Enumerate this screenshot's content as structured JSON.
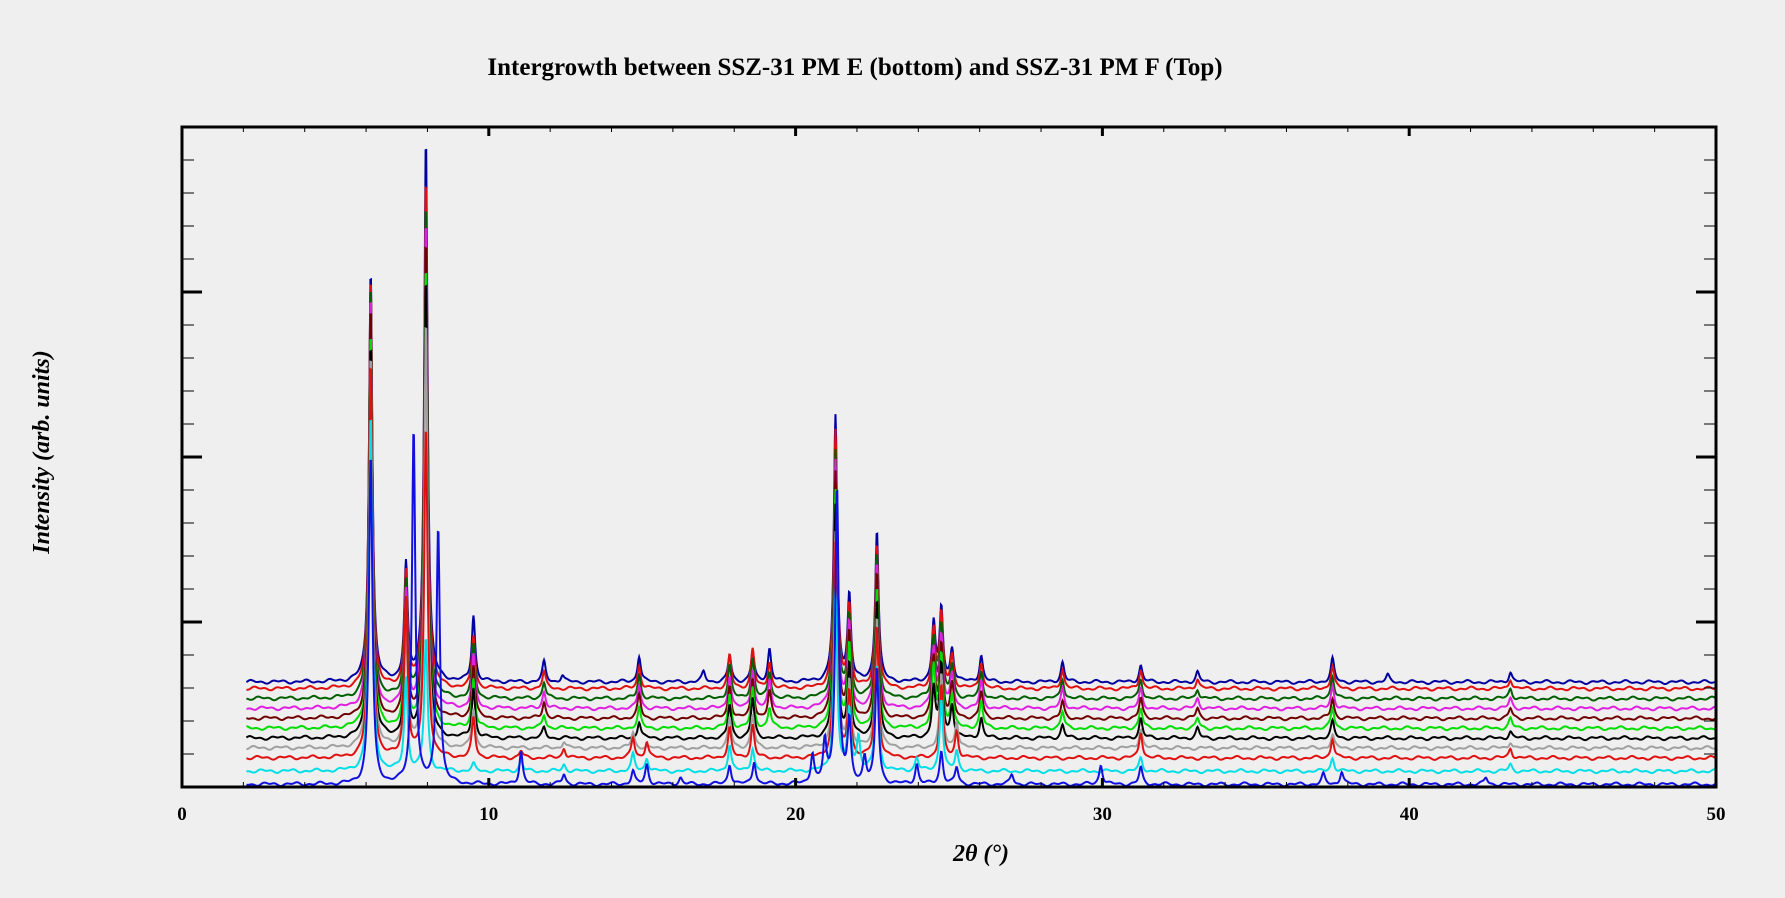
{
  "chart_data": {
    "type": "line",
    "title": "Intergrowth between SSZ-31 PM E (bottom) and SSZ-31 PM F (Top)",
    "xlabel": "2θ (°)",
    "ylabel": "Intensity (arb. units)",
    "xlim": [
      0,
      50
    ],
    "ylim": [
      0,
      200
    ],
    "x_ticks": [
      0,
      10,
      20,
      30,
      40,
      50
    ],
    "x_tick_labels": [
      "0",
      "10",
      "20",
      "30",
      "40",
      "50"
    ],
    "y_ticks_major": [
      0,
      50,
      100,
      150,
      200
    ],
    "y_tick_labels_shown": false,
    "grid": false,
    "legend": "none",
    "x_start": 2.1,
    "x_end": 50,
    "series_note_order": "bottom to top",
    "series": [
      {
        "color": "#1010e0",
        "offset": 0,
        "peaks": [
          [
            6.15,
            100
          ],
          [
            7.55,
            108
          ],
          [
            8.35,
            78
          ],
          [
            11.05,
            10
          ],
          [
            12.45,
            3
          ],
          [
            14.7,
            4
          ],
          [
            15.15,
            6
          ],
          [
            16.25,
            2
          ],
          [
            17.85,
            6
          ],
          [
            18.65,
            7
          ],
          [
            20.55,
            9
          ],
          [
            20.95,
            12
          ],
          [
            21.35,
            90
          ],
          [
            21.75,
            18
          ],
          [
            22.25,
            8
          ],
          [
            22.65,
            35
          ],
          [
            23.95,
            6
          ],
          [
            24.75,
            10
          ],
          [
            25.25,
            5
          ],
          [
            27.05,
            3
          ],
          [
            29.95,
            6
          ],
          [
            31.25,
            5
          ],
          [
            37.2,
            3
          ],
          [
            37.8,
            4
          ],
          [
            42.5,
            2
          ]
        ]
      },
      {
        "color": "#00dfe6",
        "offset": 4,
        "peaks": [
          [
            6.15,
            108
          ],
          [
            7.3,
            28
          ],
          [
            7.95,
            40
          ],
          [
            9.5,
            2
          ],
          [
            11.05,
            3
          ],
          [
            12.45,
            2
          ],
          [
            14.7,
            5
          ],
          [
            15.15,
            4
          ],
          [
            17.85,
            8
          ],
          [
            18.6,
            7
          ],
          [
            21.3,
            55
          ],
          [
            21.75,
            18
          ],
          [
            22.05,
            10
          ],
          [
            22.65,
            32
          ],
          [
            23.95,
            4
          ],
          [
            24.75,
            22
          ],
          [
            25.25,
            6
          ],
          [
            31.25,
            4
          ],
          [
            37.5,
            4
          ],
          [
            43.3,
            2
          ]
        ]
      },
      {
        "color": "#e01010",
        "offset": 8,
        "peaks": [
          [
            6.15,
            120
          ],
          [
            7.3,
            48
          ],
          [
            7.95,
            100
          ],
          [
            9.5,
            12
          ],
          [
            11.05,
            2
          ],
          [
            12.45,
            3
          ],
          [
            14.7,
            6
          ],
          [
            15.15,
            5
          ],
          [
            17.85,
            9
          ],
          [
            18.6,
            10
          ],
          [
            21.3,
            65
          ],
          [
            21.75,
            20
          ],
          [
            22.65,
            40
          ],
          [
            24.75,
            22
          ],
          [
            25.25,
            8
          ],
          [
            31.25,
            8
          ],
          [
            37.5,
            6
          ],
          [
            43.3,
            3
          ]
        ]
      },
      {
        "color": "#a0a0a0",
        "offset": 11,
        "peaks": [
          [
            6.15,
            120
          ],
          [
            7.3,
            35
          ],
          [
            7.95,
            130
          ],
          [
            9.5,
            12
          ],
          [
            12.45,
            2
          ],
          [
            14.7,
            5
          ],
          [
            17.85,
            9
          ],
          [
            18.6,
            10
          ],
          [
            21.3,
            65
          ],
          [
            21.75,
            20
          ],
          [
            22.65,
            40
          ],
          [
            24.75,
            22
          ],
          [
            25.25,
            8
          ],
          [
            31.25,
            6
          ],
          [
            37.5,
            4
          ],
          [
            43.3,
            2
          ]
        ]
      },
      {
        "color": "#000000",
        "offset": 14,
        "peaks": [
          [
            6.15,
            120
          ],
          [
            7.3,
            35
          ],
          [
            7.95,
            140
          ],
          [
            9.5,
            15
          ],
          [
            11.8,
            3
          ],
          [
            14.9,
            5
          ],
          [
            17.85,
            10
          ],
          [
            18.6,
            12
          ],
          [
            21.3,
            70
          ],
          [
            21.75,
            22
          ],
          [
            22.65,
            42
          ],
          [
            24.5,
            15
          ],
          [
            24.75,
            22
          ],
          [
            25.1,
            10
          ],
          [
            26.05,
            6
          ],
          [
            28.7,
            4
          ],
          [
            31.25,
            6
          ],
          [
            33.1,
            3
          ],
          [
            37.5,
            5
          ],
          [
            43.3,
            2
          ]
        ]
      },
      {
        "color": "#00dd00",
        "offset": 17,
        "peaks": [
          [
            6.15,
            120
          ],
          [
            7.3,
            35
          ],
          [
            7.95,
            140
          ],
          [
            9.5,
            15
          ],
          [
            11.8,
            4
          ],
          [
            14.9,
            6
          ],
          [
            17.85,
            10
          ],
          [
            18.6,
            12
          ],
          [
            19.15,
            6
          ],
          [
            21.3,
            72
          ],
          [
            21.75,
            25
          ],
          [
            22.65,
            42
          ],
          [
            24.5,
            18
          ],
          [
            24.75,
            22
          ],
          [
            25.1,
            10
          ],
          [
            26.05,
            8
          ],
          [
            28.7,
            5
          ],
          [
            31.25,
            6
          ],
          [
            33.1,
            3
          ],
          [
            37.5,
            6
          ],
          [
            43.3,
            3
          ]
        ]
      },
      {
        "color": "#700000",
        "offset": 20,
        "peaks": [
          [
            6.15,
            125
          ],
          [
            7.3,
            35
          ],
          [
            7.95,
            145
          ],
          [
            9.5,
            16
          ],
          [
            11.8,
            5
          ],
          [
            14.9,
            7
          ],
          [
            17.85,
            10
          ],
          [
            18.6,
            12
          ],
          [
            19.15,
            8
          ],
          [
            21.3,
            75
          ],
          [
            21.75,
            25
          ],
          [
            22.65,
            44
          ],
          [
            24.5,
            18
          ],
          [
            24.75,
            22
          ],
          [
            25.1,
            10
          ],
          [
            26.05,
            8
          ],
          [
            28.7,
            5
          ],
          [
            31.25,
            6
          ],
          [
            33.1,
            3
          ],
          [
            37.5,
            6
          ],
          [
            43.3,
            3
          ]
        ]
      },
      {
        "color": "#e020e0",
        "offset": 23,
        "peaks": [
          [
            6.15,
            125
          ],
          [
            7.3,
            35
          ],
          [
            7.95,
            148
          ],
          [
            9.5,
            16
          ],
          [
            11.8,
            5
          ],
          [
            14.9,
            7
          ],
          [
            17.85,
            10
          ],
          [
            18.6,
            12
          ],
          [
            19.15,
            8
          ],
          [
            21.3,
            75
          ],
          [
            21.75,
            25
          ],
          [
            22.65,
            44
          ],
          [
            24.5,
            18
          ],
          [
            24.75,
            22
          ],
          [
            25.1,
            10
          ],
          [
            26.05,
            8
          ],
          [
            28.7,
            6
          ],
          [
            31.25,
            6
          ],
          [
            33.1,
            3
          ],
          [
            37.5,
            7
          ],
          [
            43.3,
            3
          ]
        ]
      },
      {
        "color": "#006000",
        "offset": 26,
        "peaks": [
          [
            6.15,
            125
          ],
          [
            7.3,
            35
          ],
          [
            7.95,
            150
          ],
          [
            9.5,
            16
          ],
          [
            11.8,
            5
          ],
          [
            14.9,
            7
          ],
          [
            17.85,
            10
          ],
          [
            18.6,
            12
          ],
          [
            19.15,
            8
          ],
          [
            21.3,
            75
          ],
          [
            21.75,
            25
          ],
          [
            22.65,
            44
          ],
          [
            24.5,
            18
          ],
          [
            24.75,
            22
          ],
          [
            25.1,
            10
          ],
          [
            26.05,
            8
          ],
          [
            28.7,
            6
          ],
          [
            31.25,
            6
          ],
          [
            33.1,
            3
          ],
          [
            37.5,
            7
          ],
          [
            43.3,
            3
          ]
        ]
      },
      {
        "color": "#e01010",
        "offset": 29,
        "peaks": [
          [
            6.15,
            125
          ],
          [
            7.3,
            35
          ],
          [
            7.95,
            155
          ],
          [
            9.5,
            16
          ],
          [
            11.8,
            5
          ],
          [
            14.9,
            7
          ],
          [
            17.85,
            10
          ],
          [
            18.6,
            12
          ],
          [
            19.15,
            8
          ],
          [
            21.3,
            78
          ],
          [
            21.75,
            25
          ],
          [
            22.65,
            44
          ],
          [
            24.5,
            18
          ],
          [
            24.75,
            22
          ],
          [
            25.1,
            10
          ],
          [
            26.05,
            8
          ],
          [
            28.7,
            6
          ],
          [
            31.25,
            6
          ],
          [
            33.1,
            3
          ],
          [
            37.5,
            7
          ],
          [
            43.3,
            3
          ]
        ]
      },
      {
        "color": "#0000a0",
        "offset": 31,
        "peaks": [
          [
            6.15,
            125
          ],
          [
            7.3,
            35
          ],
          [
            7.95,
            165
          ],
          [
            9.5,
            20
          ],
          [
            11.8,
            6
          ],
          [
            12.4,
            2
          ],
          [
            14.9,
            8
          ],
          [
            17.0,
            3
          ],
          [
            17.85,
            8
          ],
          [
            18.6,
            9
          ],
          [
            19.15,
            10
          ],
          [
            21.3,
            80
          ],
          [
            21.75,
            26
          ],
          [
            22.65,
            46
          ],
          [
            24.5,
            18
          ],
          [
            24.75,
            22
          ],
          [
            25.1,
            10
          ],
          [
            26.05,
            8
          ],
          [
            28.7,
            6
          ],
          [
            31.25,
            5
          ],
          [
            33.1,
            3
          ],
          [
            37.5,
            7
          ],
          [
            39.3,
            2
          ],
          [
            43.3,
            3
          ]
        ]
      }
    ]
  }
}
